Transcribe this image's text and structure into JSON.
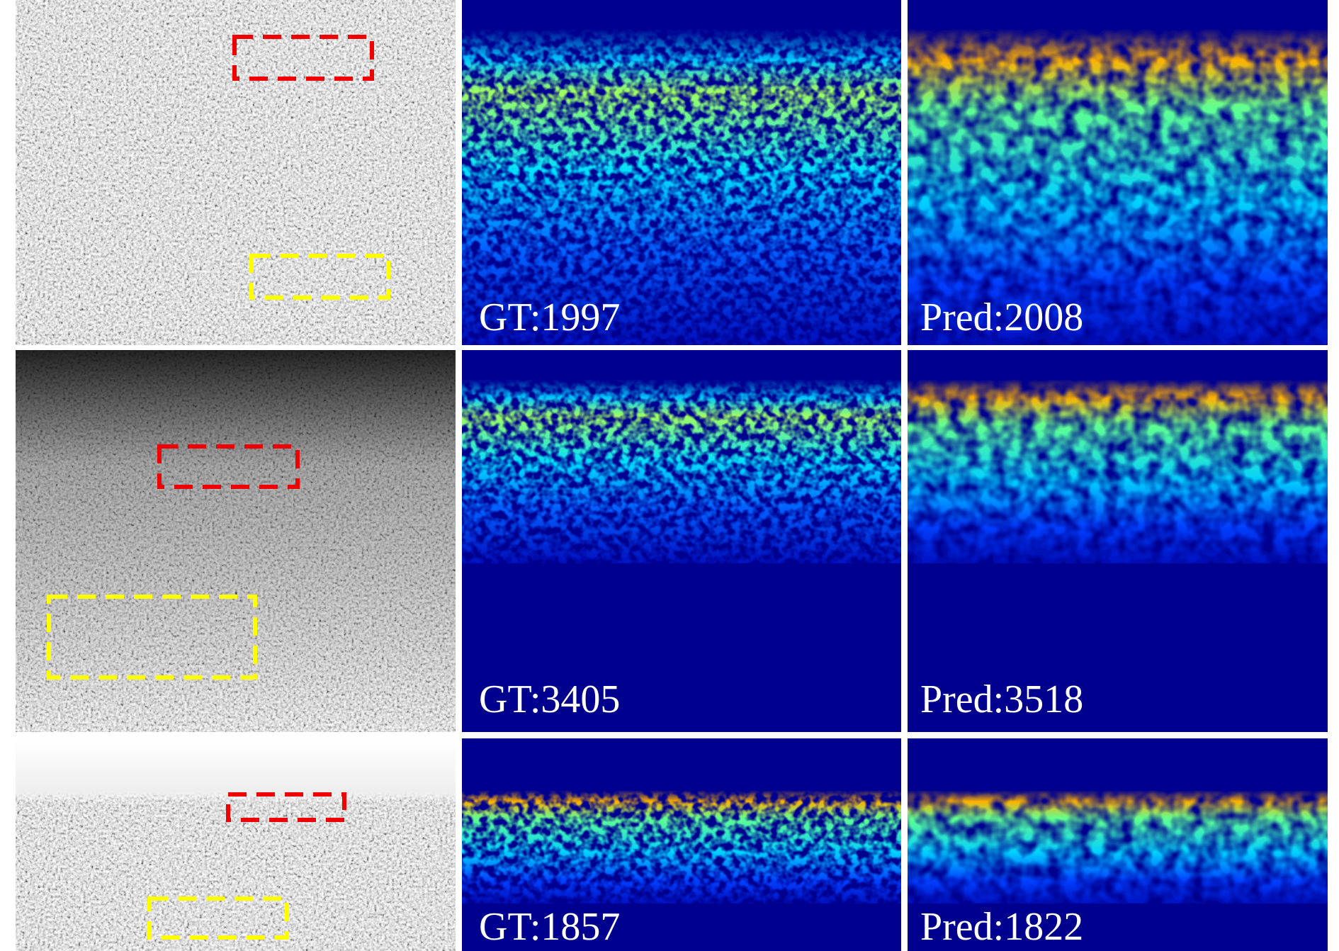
{
  "rows": [
    {
      "gt": "GT:1997",
      "pred": "Pred:2008"
    },
    {
      "gt": "GT:3405",
      "pred": "Pred:3518"
    },
    {
      "gt": "GT:1857",
      "pred": "Pred:1822"
    }
  ]
}
